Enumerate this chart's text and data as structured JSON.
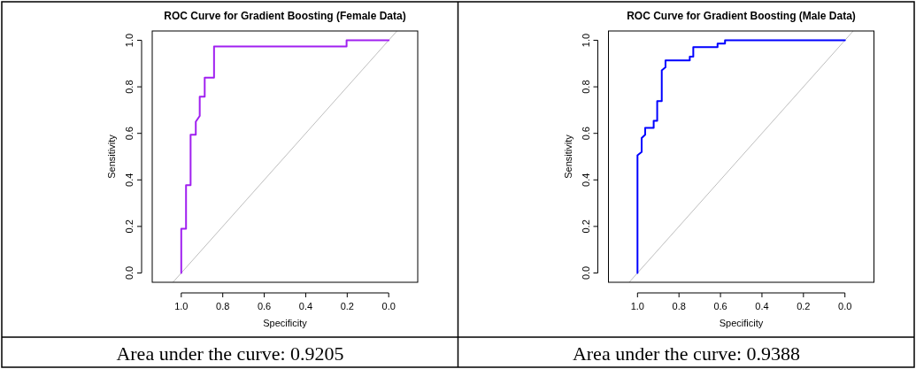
{
  "chart_data": [
    {
      "type": "line",
      "title": "ROC Curve for Gradient Boosting (Female Data)",
      "xlabel": "Specificity",
      "ylabel": "Sensitivity",
      "xlim": [
        1.14,
        -0.14
      ],
      "ylim": [
        -0.04,
        1.04
      ],
      "xticks": [
        {
          "value": 1,
          "label": "1.0"
        },
        {
          "value": 0.8,
          "label": "0.8"
        },
        {
          "value": 0.6,
          "label": "0.6"
        },
        {
          "value": 0.4,
          "label": "0.4"
        },
        {
          "value": 0.2,
          "label": "0.2"
        },
        {
          "value": 0,
          "label": "0.0"
        }
      ],
      "yticks": [
        {
          "value": 0,
          "label": "0.0"
        },
        {
          "value": 0.2,
          "label": "0.2"
        },
        {
          "value": 0.4,
          "label": "0.4"
        },
        {
          "value": 0.6,
          "label": "0.6"
        },
        {
          "value": 0.8,
          "label": "0.8"
        },
        {
          "value": 1,
          "label": "1.0"
        }
      ],
      "series": [
        {
          "color": "#a020f0",
          "x": [
            1,
            1,
            0.977,
            0.977,
            0.955,
            0.955,
            0.93,
            0.93,
            0.911,
            0.911,
            0.887,
            0.887,
            0.842,
            0.842,
            0.203,
            0.203,
            0
          ],
          "values": [
            0,
            0.19,
            0.19,
            0.377,
            0.377,
            0.594,
            0.594,
            0.65,
            0.675,
            0.758,
            0.758,
            0.839,
            0.839,
            0.973,
            0.973,
            1,
            1
          ]
        },
        {
          "color": "#bebebe",
          "x": [
            1.04,
            -0.04
          ],
          "values": [
            -0.04,
            1.04
          ]
        }
      ],
      "annotations": [
        "Area under the curve: 0.9205"
      ]
    },
    {
      "type": "line",
      "title": "ROC Curve for Gradient Boosting (Male Data)",
      "xlabel": "Specificity",
      "ylabel": "Sensitivity",
      "xlim": [
        1.14,
        -0.14
      ],
      "ylim": [
        -0.04,
        1.04
      ],
      "xticks": [
        {
          "value": 1,
          "label": "1.0"
        },
        {
          "value": 0.8,
          "label": "0.8"
        },
        {
          "value": 0.6,
          "label": "0.6"
        },
        {
          "value": 0.4,
          "label": "0.4"
        },
        {
          "value": 0.2,
          "label": "0.2"
        },
        {
          "value": 0,
          "label": "0.0"
        }
      ],
      "yticks": [
        {
          "value": 0,
          "label": "0.0"
        },
        {
          "value": 0.2,
          "label": "0.2"
        },
        {
          "value": 0.4,
          "label": "0.4"
        },
        {
          "value": 0.6,
          "label": "0.6"
        },
        {
          "value": 0.8,
          "label": "0.8"
        },
        {
          "value": 1,
          "label": "1.0"
        }
      ],
      "series": [
        {
          "color": "#0000ff",
          "x": [
            1,
            1,
            0.98,
            0.98,
            0.963,
            0.963,
            0.922,
            0.922,
            0.905,
            0.905,
            0.883,
            0.883,
            0.865,
            0.865,
            0.748,
            0.748,
            0.731,
            0.731,
            0.614,
            0.614,
            0.578,
            0.578,
            0
          ],
          "values": [
            0,
            0.506,
            0.52,
            0.58,
            0.594,
            0.624,
            0.624,
            0.654,
            0.654,
            0.739,
            0.739,
            0.871,
            0.884,
            0.914,
            0.914,
            0.93,
            0.93,
            0.971,
            0.971,
            0.986,
            0.986,
            1,
            1
          ]
        },
        {
          "color": "#bebebe",
          "x": [
            1.04,
            -0.04
          ],
          "values": [
            -0.04,
            1.04
          ]
        }
      ],
      "annotations": [
        "Area under the curve: 0.9388"
      ]
    }
  ]
}
